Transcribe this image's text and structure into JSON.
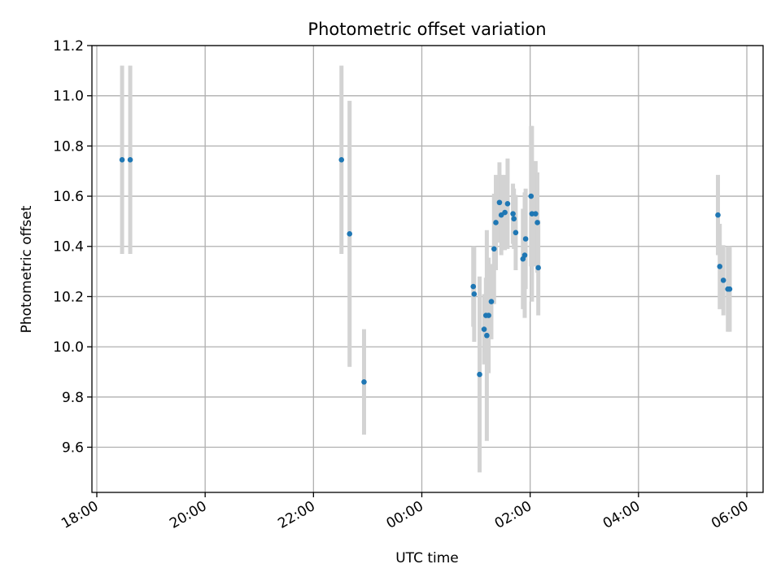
{
  "chart_data": {
    "type": "scatter",
    "title": "Photometric offset variation",
    "xlabel": "UTC time",
    "ylabel": "Photometric offset",
    "x_tick_labels": [
      "18:00",
      "20:00",
      "22:00",
      "00:00",
      "02:00",
      "04:00",
      "06:00"
    ],
    "y_tick_labels": [
      "9.6",
      "9.8",
      "10.0",
      "10.2",
      "10.4",
      "10.6",
      "10.8",
      "11.0",
      "11.2"
    ],
    "x_axis": {
      "unit": "hours after 18:00 UTC (day 1)",
      "ticks_hours": [
        0,
        2,
        4,
        6,
        8,
        10,
        12
      ]
    },
    "ylim": [
      9.42,
      11.2
    ],
    "grid": true,
    "marker_color": "#1f77b4",
    "errorbar_color": "#d3d3d3",
    "series": [
      {
        "points": [
          {
            "t": "18:28",
            "y": 10.745,
            "err": 0.375
          },
          {
            "t": "18:37",
            "y": 10.745,
            "err": 0.375
          },
          {
            "t": "22:31",
            "y": 10.745,
            "err": 0.375
          },
          {
            "t": "22:40",
            "y": 10.45,
            "err": 0.53
          },
          {
            "t": "22:56",
            "y": 9.86,
            "err": 0.21
          },
          {
            "t": "00:57",
            "y": 10.24,
            "err": 0.16
          },
          {
            "t": "00:58",
            "y": 10.21,
            "err": 0.19
          },
          {
            "t": "01:04",
            "y": 9.89,
            "err": 0.39
          },
          {
            "t": "01:09",
            "y": 10.07,
            "err": 0.14
          },
          {
            "t": "01:11",
            "y": 10.125,
            "err": 0.15
          },
          {
            "t": "01:12",
            "y": 10.045,
            "err": 0.42
          },
          {
            "t": "01:14",
            "y": 10.125,
            "err": 0.23
          },
          {
            "t": "01:17",
            "y": 10.18,
            "err": 0.15
          },
          {
            "t": "01:20",
            "y": 10.39,
            "err": 0.22
          },
          {
            "t": "01:22",
            "y": 10.495,
            "err": 0.19
          },
          {
            "t": "01:26",
            "y": 10.575,
            "err": 0.16
          },
          {
            "t": "01:28",
            "y": 10.525,
            "err": 0.16
          },
          {
            "t": "01:32",
            "y": 10.535,
            "err": 0.15
          },
          {
            "t": "01:35",
            "y": 10.57,
            "err": 0.18
          },
          {
            "t": "01:41",
            "y": 10.53,
            "err": 0.12
          },
          {
            "t": "01:42",
            "y": 10.51,
            "err": 0.12
          },
          {
            "t": "01:44",
            "y": 10.455,
            "err": 0.15
          },
          {
            "t": "01:52",
            "y": 10.35,
            "err": 0.2
          },
          {
            "t": "01:54",
            "y": 10.365,
            "err": 0.25
          },
          {
            "t": "01:55",
            "y": 10.43,
            "err": 0.2
          },
          {
            "t": "02:01",
            "y": 10.6,
            "err": 0.28
          },
          {
            "t": "02:02",
            "y": 10.53,
            "err": 0.35
          },
          {
            "t": "02:06",
            "y": 10.53,
            "err": 0.21
          },
          {
            "t": "02:08",
            "y": 10.495,
            "err": 0.2
          },
          {
            "t": "02:09",
            "y": 10.315,
            "err": 0.19
          },
          {
            "t": "05:28",
            "y": 10.525,
            "err": 0.16
          },
          {
            "t": "05:30",
            "y": 10.32,
            "err": 0.17
          },
          {
            "t": "05:34",
            "y": 10.265,
            "err": 0.14
          },
          {
            "t": "05:39",
            "y": 10.23,
            "err": 0.17
          },
          {
            "t": "05:41",
            "y": 10.23,
            "err": 0.17
          }
        ]
      }
    ]
  }
}
